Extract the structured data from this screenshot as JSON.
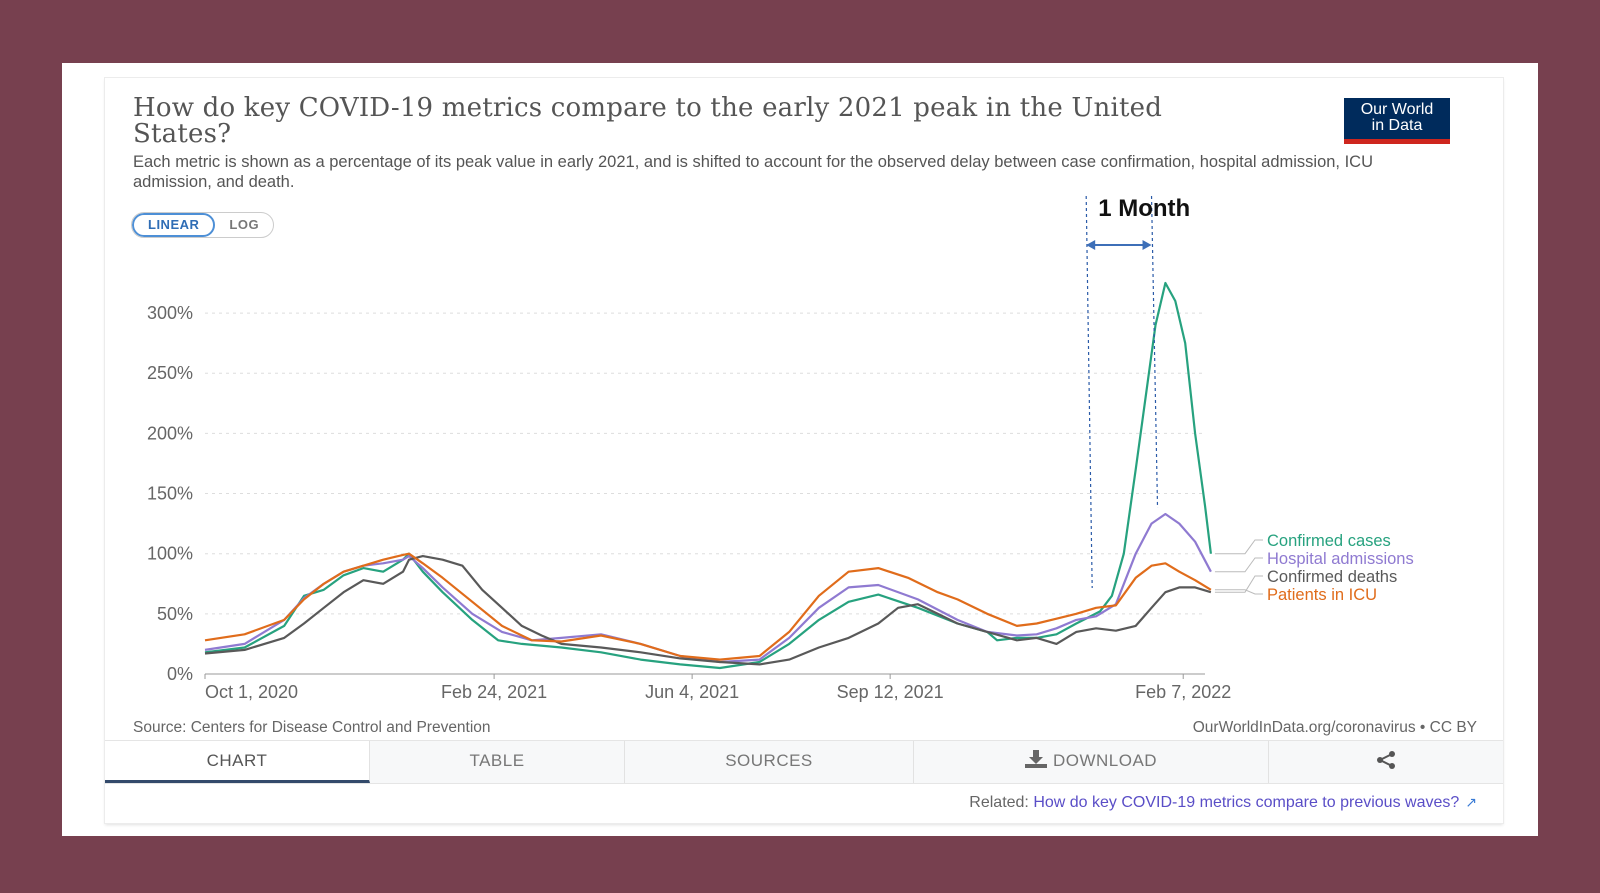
{
  "title": "How do key COVID-19 metrics compare to the early 2021 peak in the United States?",
  "subtitle": "Each metric is shown as a percentage of its peak value in early 2021, and is shifted to account for the observed delay between case confirmation, hospital admission, ICU admission, and death.",
  "logo": {
    "line1": "Our World",
    "line2": "in Data"
  },
  "scale_toggle": {
    "linear": "LINEAR",
    "log": "LOG",
    "selected": "LINEAR"
  },
  "annotation": {
    "label": "1 Month"
  },
  "footer": {
    "source": "Source: Centers for Disease Control and Prevention",
    "license": "OurWorldInData.org/coronavirus • CC BY"
  },
  "tabs": [
    {
      "label": "CHART"
    },
    {
      "label": "TABLE"
    },
    {
      "label": "SOURCES"
    },
    {
      "label": "DOWNLOAD"
    },
    {
      "label": ""
    }
  ],
  "related": {
    "prefix": "Related: ",
    "link_text": "How do key COVID-19 metrics compare to previous waves?"
  },
  "chart_data": {
    "type": "line",
    "title": "How do key COVID-19 metrics compare to the early 2021 peak in the United States?",
    "ylim": [
      0,
      320
    ],
    "yticks": [
      0,
      50,
      100,
      150,
      200,
      250,
      300
    ],
    "ytick_labels": [
      "0%",
      "50%",
      "100%",
      "150%",
      "200%",
      "250%",
      "300%"
    ],
    "xlim": [
      0,
      505
    ],
    "xticks": [
      0,
      146,
      246,
      346,
      494
    ],
    "xtick_labels": [
      "Oct 1, 2020",
      "Feb 24, 2021",
      "Jun 4, 2021",
      "Sep 12, 2021",
      "Feb 7, 2022"
    ],
    "x_unit": "days since Oct 1, 2020",
    "grid": true,
    "legend_placement": "right (labels at line ends)",
    "annotation": {
      "label": "1 Month",
      "x_start": 445,
      "x_end": 478
    },
    "series": [
      {
        "name": "Confirmed cases",
        "color": "#27a27f",
        "points": [
          [
            0,
            18
          ],
          [
            20,
            22
          ],
          [
            40,
            40
          ],
          [
            50,
            65
          ],
          [
            60,
            70
          ],
          [
            70,
            82
          ],
          [
            80,
            88
          ],
          [
            90,
            85
          ],
          [
            100,
            95
          ],
          [
            103,
            100
          ],
          [
            110,
            85
          ],
          [
            120,
            68
          ],
          [
            135,
            45
          ],
          [
            148,
            28
          ],
          [
            160,
            25
          ],
          [
            180,
            22
          ],
          [
            200,
            18
          ],
          [
            220,
            12
          ],
          [
            240,
            8
          ],
          [
            260,
            5
          ],
          [
            280,
            10
          ],
          [
            295,
            25
          ],
          [
            310,
            45
          ],
          [
            325,
            60
          ],
          [
            340,
            66
          ],
          [
            360,
            55
          ],
          [
            380,
            42
          ],
          [
            395,
            35
          ],
          [
            400,
            28
          ],
          [
            410,
            30
          ],
          [
            420,
            30
          ],
          [
            430,
            33
          ],
          [
            440,
            42
          ],
          [
            446,
            47
          ],
          [
            452,
            52
          ],
          [
            458,
            65
          ],
          [
            464,
            100
          ],
          [
            470,
            170
          ],
          [
            475,
            230
          ],
          [
            480,
            290
          ],
          [
            485,
            325
          ],
          [
            490,
            310
          ],
          [
            495,
            275
          ],
          [
            500,
            200
          ],
          [
            505,
            140
          ],
          [
            508,
            100
          ]
        ]
      },
      {
        "name": "Hospital admissions",
        "color": "#8f7ad1",
        "points": [
          [
            0,
            20
          ],
          [
            20,
            25
          ],
          [
            40,
            45
          ],
          [
            50,
            63
          ],
          [
            60,
            75
          ],
          [
            70,
            85
          ],
          [
            80,
            90
          ],
          [
            90,
            92
          ],
          [
            100,
            95
          ],
          [
            103,
            98
          ],
          [
            110,
            88
          ],
          [
            120,
            72
          ],
          [
            135,
            50
          ],
          [
            150,
            35
          ],
          [
            165,
            28
          ],
          [
            180,
            30
          ],
          [
            200,
            33
          ],
          [
            220,
            25
          ],
          [
            240,
            15
          ],
          [
            260,
            10
          ],
          [
            280,
            12
          ],
          [
            295,
            30
          ],
          [
            310,
            55
          ],
          [
            325,
            72
          ],
          [
            340,
            74
          ],
          [
            360,
            62
          ],
          [
            380,
            45
          ],
          [
            395,
            35
          ],
          [
            410,
            32
          ],
          [
            420,
            33
          ],
          [
            430,
            38
          ],
          [
            440,
            45
          ],
          [
            450,
            48
          ],
          [
            460,
            58
          ],
          [
            470,
            100
          ],
          [
            478,
            125
          ],
          [
            485,
            133
          ],
          [
            492,
            125
          ],
          [
            500,
            110
          ],
          [
            508,
            85
          ]
        ]
      },
      {
        "name": "Confirmed deaths",
        "color": "#595959",
        "points": [
          [
            0,
            17
          ],
          [
            20,
            20
          ],
          [
            40,
            30
          ],
          [
            50,
            42
          ],
          [
            60,
            55
          ],
          [
            70,
            68
          ],
          [
            80,
            78
          ],
          [
            90,
            75
          ],
          [
            100,
            85
          ],
          [
            103,
            95
          ],
          [
            110,
            98
          ],
          [
            120,
            95
          ],
          [
            130,
            90
          ],
          [
            140,
            70
          ],
          [
            150,
            55
          ],
          [
            160,
            40
          ],
          [
            170,
            32
          ],
          [
            180,
            25
          ],
          [
            200,
            22
          ],
          [
            220,
            18
          ],
          [
            240,
            13
          ],
          [
            260,
            10
          ],
          [
            280,
            8
          ],
          [
            295,
            12
          ],
          [
            310,
            22
          ],
          [
            325,
            30
          ],
          [
            340,
            42
          ],
          [
            350,
            55
          ],
          [
            360,
            58
          ],
          [
            370,
            50
          ],
          [
            380,
            42
          ],
          [
            395,
            35
          ],
          [
            410,
            28
          ],
          [
            420,
            30
          ],
          [
            430,
            25
          ],
          [
            440,
            35
          ],
          [
            450,
            38
          ],
          [
            460,
            36
          ],
          [
            470,
            40
          ],
          [
            478,
            55
          ],
          [
            485,
            68
          ],
          [
            492,
            72
          ],
          [
            500,
            72
          ],
          [
            508,
            68
          ]
        ]
      },
      {
        "name": "Patients in ICU",
        "color": "#e06c1b",
        "points": [
          [
            0,
            28
          ],
          [
            20,
            33
          ],
          [
            40,
            45
          ],
          [
            50,
            62
          ],
          [
            60,
            75
          ],
          [
            70,
            85
          ],
          [
            80,
            90
          ],
          [
            90,
            95
          ],
          [
            100,
            99
          ],
          [
            103,
            100
          ],
          [
            110,
            92
          ],
          [
            120,
            80
          ],
          [
            135,
            60
          ],
          [
            150,
            40
          ],
          [
            165,
            28
          ],
          [
            180,
            27
          ],
          [
            200,
            32
          ],
          [
            220,
            25
          ],
          [
            240,
            15
          ],
          [
            260,
            12
          ],
          [
            280,
            15
          ],
          [
            295,
            35
          ],
          [
            310,
            65
          ],
          [
            325,
            85
          ],
          [
            340,
            88
          ],
          [
            355,
            80
          ],
          [
            370,
            68
          ],
          [
            380,
            62
          ],
          [
            395,
            50
          ],
          [
            410,
            40
          ],
          [
            420,
            42
          ],
          [
            430,
            46
          ],
          [
            440,
            50
          ],
          [
            450,
            55
          ],
          [
            460,
            57
          ],
          [
            470,
            80
          ],
          [
            478,
            90
          ],
          [
            485,
            92
          ],
          [
            492,
            85
          ],
          [
            500,
            78
          ],
          [
            508,
            70
          ]
        ]
      }
    ]
  }
}
